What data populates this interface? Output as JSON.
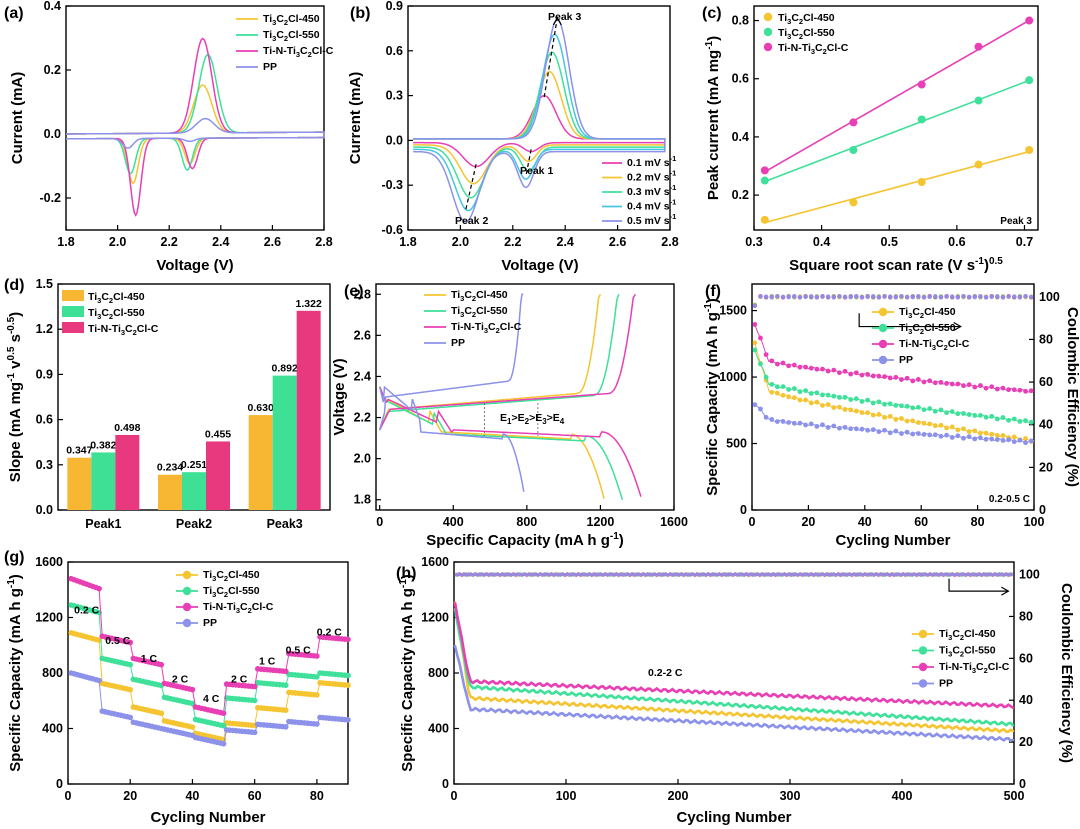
{
  "colors": {
    "s450": "#f5c431",
    "s550": "#3ee09a",
    "tin": "#e83fb5",
    "pp": "#8c92ea",
    "c1": "#e83fb5",
    "c2": "#f5c431",
    "c3": "#3ee09a",
    "c4": "#47c6e0",
    "c5": "#8c92ea",
    "bar450": "#f8b733",
    "bar550": "#3ee096",
    "bartin": "#e8387e"
  },
  "chart_data": [
    {
      "panel": "(a)",
      "type": "line",
      "xlabel": "Voltage (V)",
      "ylabel": "Current (mA)",
      "xlim": [
        1.8,
        2.8
      ],
      "ylim": [
        -0.3,
        0.4
      ],
      "xticks": [
        "1.8",
        "2.0",
        "2.2",
        "2.4",
        "2.6",
        "2.8"
      ],
      "yticks": [
        "-0.2",
        "0.0",
        "0.2",
        "0.4"
      ],
      "legend": [
        "Ti3C2Cl-450",
        "Ti3C2Cl-550",
        "Ti-N-Ti3C2Cl-C",
        "PP"
      ],
      "legend_display": [
        {
          "main": "Ti",
          "sub1": "3",
          "mid": "C",
          "sub2": "2",
          "tail": "Cl-450"
        },
        {
          "main": "Ti",
          "sub1": "3",
          "mid": "C",
          "sub2": "2",
          "tail": "Cl-550"
        },
        {
          "main": "Ti-N-Ti",
          "sub1": "3",
          "mid": "C",
          "sub2": "2",
          "tail": "Cl-C"
        },
        {
          "main": "PP",
          "sub1": "",
          "mid": "",
          "sub2": "",
          "tail": ""
        }
      ],
      "series": [
        {
          "name": "Ti3C2Cl-450",
          "reduction_peaks_V": [
            2.06,
            2.28
          ],
          "reduction_peaks_mA": [
            -0.14,
            -0.08
          ],
          "oxidation_peak_V": 2.33,
          "oxidation_peak_mA": 0.15
        },
        {
          "name": "Ti3C2Cl-550",
          "reduction_peaks_V": [
            2.05,
            2.27
          ],
          "reduction_peaks_mA": [
            -0.11,
            -0.1
          ],
          "oxidation_peak_V": 2.35,
          "oxidation_peak_mA": 0.245
        },
        {
          "name": "Ti-N-Ti3C2Cl-C",
          "reduction_peaks_V": [
            2.07,
            2.29
          ],
          "reduction_peaks_mA": [
            -0.24,
            -0.095
          ],
          "oxidation_peak_V": 2.33,
          "oxidation_peak_mA": 0.295
        },
        {
          "name": "PP",
          "reduction_peaks_V": [
            2.04,
            2.28
          ],
          "reduction_peaks_mA": [
            -0.03,
            -0.01
          ],
          "oxidation_peak_V": 2.34,
          "oxidation_peak_mA": 0.045
        }
      ]
    },
    {
      "panel": "(b)",
      "type": "line",
      "xlabel": "Voltage (V)",
      "ylabel": "Current (mA)",
      "xlim": [
        1.8,
        2.8
      ],
      "ylim": [
        -0.6,
        0.9
      ],
      "xticks": [
        "1.8",
        "2.0",
        "2.2",
        "2.4",
        "2.6",
        "2.8"
      ],
      "yticks": [
        "-0.6",
        "-0.3",
        "0.0",
        "0.3",
        "0.6",
        "0.9"
      ],
      "legend": [
        "0.1 mV s-1",
        "0.2 mV s-1",
        "0.3 mV s-1",
        "0.4 mV s-1",
        "0.5 mV s-1"
      ],
      "legend_display": [
        "0.1 mV s",
        "0.2 mV s",
        "0.3 mV s",
        "0.4 mV s",
        "0.5 mV s"
      ],
      "unit_superscript": "-1",
      "annotations": [
        "Peak 3",
        "Peak 2",
        "Peak 1"
      ],
      "series": [
        {
          "name": "0.1 mV s-1",
          "ox_peak": [
            2.32,
            0.29
          ],
          "red_peak1": [
            2.27,
            -0.06
          ],
          "red_peak2": [
            2.06,
            -0.16
          ]
        },
        {
          "name": "0.2 mV s-1",
          "ox_peak": [
            2.34,
            0.45
          ],
          "red_peak1": [
            2.26,
            -0.11
          ],
          "red_peak2": [
            2.05,
            -0.26
          ]
        },
        {
          "name": "0.3 mV s-1",
          "ox_peak": [
            2.35,
            0.58
          ],
          "red_peak1": [
            2.26,
            -0.16
          ],
          "red_peak2": [
            2.04,
            -0.34
          ]
        },
        {
          "name": "0.4 mV s-1",
          "ox_peak": [
            2.36,
            0.7
          ],
          "red_peak1": [
            2.25,
            -0.2
          ],
          "red_peak2": [
            2.03,
            -0.41
          ]
        },
        {
          "name": "0.5 mV s-1",
          "ox_peak": [
            2.37,
            0.8
          ],
          "red_peak1": [
            2.25,
            -0.24
          ],
          "red_peak2": [
            2.02,
            -0.47
          ]
        }
      ]
    },
    {
      "panel": "(c)",
      "type": "scatter",
      "xlabel": "Square root scan rate (V s-1)0.5",
      "xlabel_display": {
        "main": "Square root scan rate (V s",
        "sup1": "-1",
        "mid": ")",
        "sup2": "0.5"
      },
      "ylabel": "Peak current (mA mg-1)",
      "ylabel_display": {
        "main": "Peak current (mA mg",
        "sup": "-1",
        "tail": ")"
      },
      "xlim": [
        0.3,
        0.72
      ],
      "ylim": [
        0.08,
        0.85
      ],
      "xticks": [
        "0.3",
        "0.4",
        "0.5",
        "0.6",
        "0.7"
      ],
      "yticks": [
        "0.2",
        "0.4",
        "0.6",
        "0.8"
      ],
      "annotation": "Peak 3",
      "legend": [
        "Ti3C2Cl-450",
        "Ti3C2Cl-550",
        "Ti-N-Ti3C2Cl-C"
      ],
      "x": [
        0.316,
        0.447,
        0.548,
        0.632,
        0.707
      ],
      "series": [
        {
          "name": "Ti3C2Cl-450",
          "values": [
            0.115,
            0.175,
            0.245,
            0.305,
            0.355
          ]
        },
        {
          "name": "Ti3C2Cl-550",
          "values": [
            0.25,
            0.355,
            0.46,
            0.525,
            0.595
          ]
        },
        {
          "name": "Ti-N-Ti3C2Cl-C",
          "values": [
            0.285,
            0.45,
            0.58,
            0.71,
            0.8
          ]
        }
      ]
    },
    {
      "panel": "(d)",
      "type": "bar",
      "ylabel": "Slope (mA mg-1 V-0.5 s-0.5)",
      "ylabel_display": {
        "a": "Slope (mA mg",
        "b": "-1",
        "c": " v",
        "d": "0.5",
        "e": " s",
        "f": "-0.5",
        "g": ")"
      },
      "categories": [
        "Peak1",
        "Peak2",
        "Peak3"
      ],
      "ylim": [
        0.0,
        1.5
      ],
      "yticks": [
        "0.0",
        "0.3",
        "0.6",
        "0.9",
        "1.2",
        "1.5"
      ],
      "legend": [
        "Ti3C2Cl-450",
        "Ti3C2Cl-550",
        "Ti-N-Ti3C2Cl-C"
      ],
      "series": [
        {
          "name": "Ti3C2Cl-450",
          "values": [
            0.347,
            0.234,
            0.63
          ],
          "labels": [
            "0.347",
            "0.234",
            "0.630"
          ]
        },
        {
          "name": "Ti3C2Cl-550",
          "values": [
            0.382,
            0.251,
            0.892
          ],
          "labels": [
            "0.382",
            "0.251",
            "0.892"
          ]
        },
        {
          "name": "Ti-N-Ti3C2Cl-C",
          "values": [
            0.498,
            0.455,
            1.322
          ],
          "labels": [
            "0.498",
            "0.455",
            "1.322"
          ]
        }
      ]
    },
    {
      "panel": "(e)",
      "type": "line",
      "xlabel": "Specific Capacity (mA h g-1)",
      "xlabel_display": {
        "main": "Specific Capacity (mA h g",
        "sup": "-1",
        "tail": ")"
      },
      "ylabel": "Voltage (V)",
      "xlim": [
        -20,
        1600
      ],
      "ylim": [
        1.75,
        2.85
      ],
      "xticks": [
        "0",
        "400",
        "800",
        "1200",
        "1600"
      ],
      "yticks": [
        "1.8",
        "2.0",
        "2.2",
        "2.4",
        "2.6",
        "2.8"
      ],
      "annotation": "E1>E2>E3>E4",
      "annotation_display": [
        "E",
        "1",
        ">E",
        "2",
        ">E",
        "3",
        ">E",
        "4"
      ],
      "legend": [
        "Ti3C2Cl-450",
        "Ti3C2Cl-550",
        "Ti-N-Ti3C2Cl-C",
        "PP"
      ],
      "series": [
        {
          "name": "Ti3C2Cl-450",
          "discharge_capacity": 1220,
          "charge_capacity": 1200,
          "upper_plateau_V": 2.24,
          "lower_plateau_V": 2.12
        },
        {
          "name": "Ti3C2Cl-550",
          "discharge_capacity": 1320,
          "charge_capacity": 1300,
          "upper_plateau_V": 2.23,
          "lower_plateau_V": 2.11
        },
        {
          "name": "Ti-N-Ti3C2Cl-C",
          "discharge_capacity": 1420,
          "charge_capacity": 1390,
          "upper_plateau_V": 2.24,
          "lower_plateau_V": 2.13
        },
        {
          "name": "PP",
          "discharge_capacity": 790,
          "charge_capacity": 780,
          "upper_plateau_V": 2.3,
          "lower_plateau_V": 2.12
        }
      ]
    },
    {
      "panel": "(f)",
      "type": "scatter",
      "xlabel": "Cycling Number",
      "ylabel": "Specific Capacity (mA h g-1)",
      "ylabel_display": {
        "main": "Specific Capacity (mA h g",
        "sup": "-1",
        "tail": ")"
      },
      "ylabel_right": "Coulombic Efficiency (%)",
      "xlim": [
        0,
        100
      ],
      "ylim": [
        0,
        1700
      ],
      "ylim_right": [
        0,
        106
      ],
      "xticks": [
        "0",
        "20",
        "40",
        "60",
        "80",
        "100"
      ],
      "yticks": [
        "0",
        "500",
        "1000",
        "1500"
      ],
      "yticks_right": [
        "0",
        "20",
        "40",
        "60",
        "80",
        "100"
      ],
      "annotation": "0.2-0.5 C",
      "legend": [
        "Ti3C2Cl-450",
        "Ti3C2Cl-550",
        "Ti-N-Ti3C2Cl-C",
        "PP"
      ],
      "series": [
        {
          "name": "Ti3C2Cl-450",
          "first": 1250,
          "after_drop": 900,
          "final": 520
        },
        {
          "name": "Ti3C2Cl-550",
          "first": 1200,
          "after_drop": 950,
          "final": 660
        },
        {
          "name": "Ti-N-Ti3C2Cl-C",
          "first": 1400,
          "after_drop": 1120,
          "final": 890
        },
        {
          "name": "PP",
          "first": 800,
          "after_drop": 680,
          "final": 510
        }
      ],
      "coulombic_efficiency_pct": 100
    },
    {
      "panel": "(g)",
      "type": "scatter",
      "xlabel": "Cycling Number",
      "ylabel": "Specific Capacity (mA h g-1)",
      "ylabel_display": {
        "main": "Specific Capacity (mA h g",
        "sup": "-1",
        "tail": ")"
      },
      "xlim": [
        0,
        90
      ],
      "ylim": [
        0,
        1600
      ],
      "xticks": [
        "0",
        "20",
        "40",
        "60",
        "80"
      ],
      "yticks": [
        "0",
        "400",
        "800",
        "1200",
        "1600"
      ],
      "rates": [
        "0.2 C",
        "0.5 C",
        "1 C",
        "2 C",
        "4 C",
        "2 C",
        "1 C",
        "0.5 C",
        "0.2 C"
      ],
      "legend": [
        "Ti3C2Cl-450",
        "Ti3C2Cl-550",
        "Ti-N-Ti3C2Cl-C",
        "PP"
      ],
      "series": [
        {
          "name": "Ti3C2Cl-450",
          "step_values": [
            1050,
            700,
            530,
            430,
            340,
            430,
            540,
            650,
            720
          ]
        },
        {
          "name": "Ti3C2Cl-550",
          "step_values": [
            1250,
            880,
            730,
            600,
            440,
            610,
            720,
            780,
            790
          ]
        },
        {
          "name": "Ti-N-Ti3C2Cl-C",
          "step_values": [
            1420,
            1040,
            880,
            700,
            530,
            710,
            820,
            930,
            1050
          ]
        },
        {
          "name": "PP",
          "step_values": [
            760,
            500,
            420,
            370,
            310,
            380,
            420,
            440,
            470
          ]
        }
      ]
    },
    {
      "panel": "(h)",
      "type": "scatter",
      "xlabel": "Cycling Number",
      "ylabel": "Specific Capacity (mA h g-1)",
      "ylabel_display": {
        "main": "Specific Capacity (mA h g",
        "sup": "-1",
        "tail": ")"
      },
      "ylabel_right": "Coulombic Efficiency (%)",
      "xlim": [
        0,
        500
      ],
      "ylim": [
        0,
        1600
      ],
      "ylim_right": [
        0,
        106
      ],
      "xticks": [
        "0",
        "100",
        "200",
        "300",
        "400",
        "500"
      ],
      "yticks": [
        "0",
        "400",
        "800",
        "1200",
        "1600"
      ],
      "yticks_right": [
        "0",
        "20",
        "40",
        "60",
        "80",
        "100"
      ],
      "annotation": "0.2-2 C",
      "legend": [
        "Ti3C2Cl-450",
        "Ti3C2Cl-550",
        "Ti-N-Ti3C2Cl-C",
        "PP"
      ],
      "series": [
        {
          "name": "Ti3C2Cl-450",
          "first": 1300,
          "after_activation": 620,
          "final": 380
        },
        {
          "name": "Ti3C2Cl-550",
          "first": 1250,
          "after_activation": 700,
          "final": 430
        },
        {
          "name": "Ti-N-Ti3C2Cl-C",
          "first": 1300,
          "after_activation": 740,
          "final": 560
        },
        {
          "name": "PP",
          "first": 1000,
          "after_activation": 540,
          "final": 320
        }
      ],
      "coulombic_efficiency_pct": 100
    }
  ]
}
